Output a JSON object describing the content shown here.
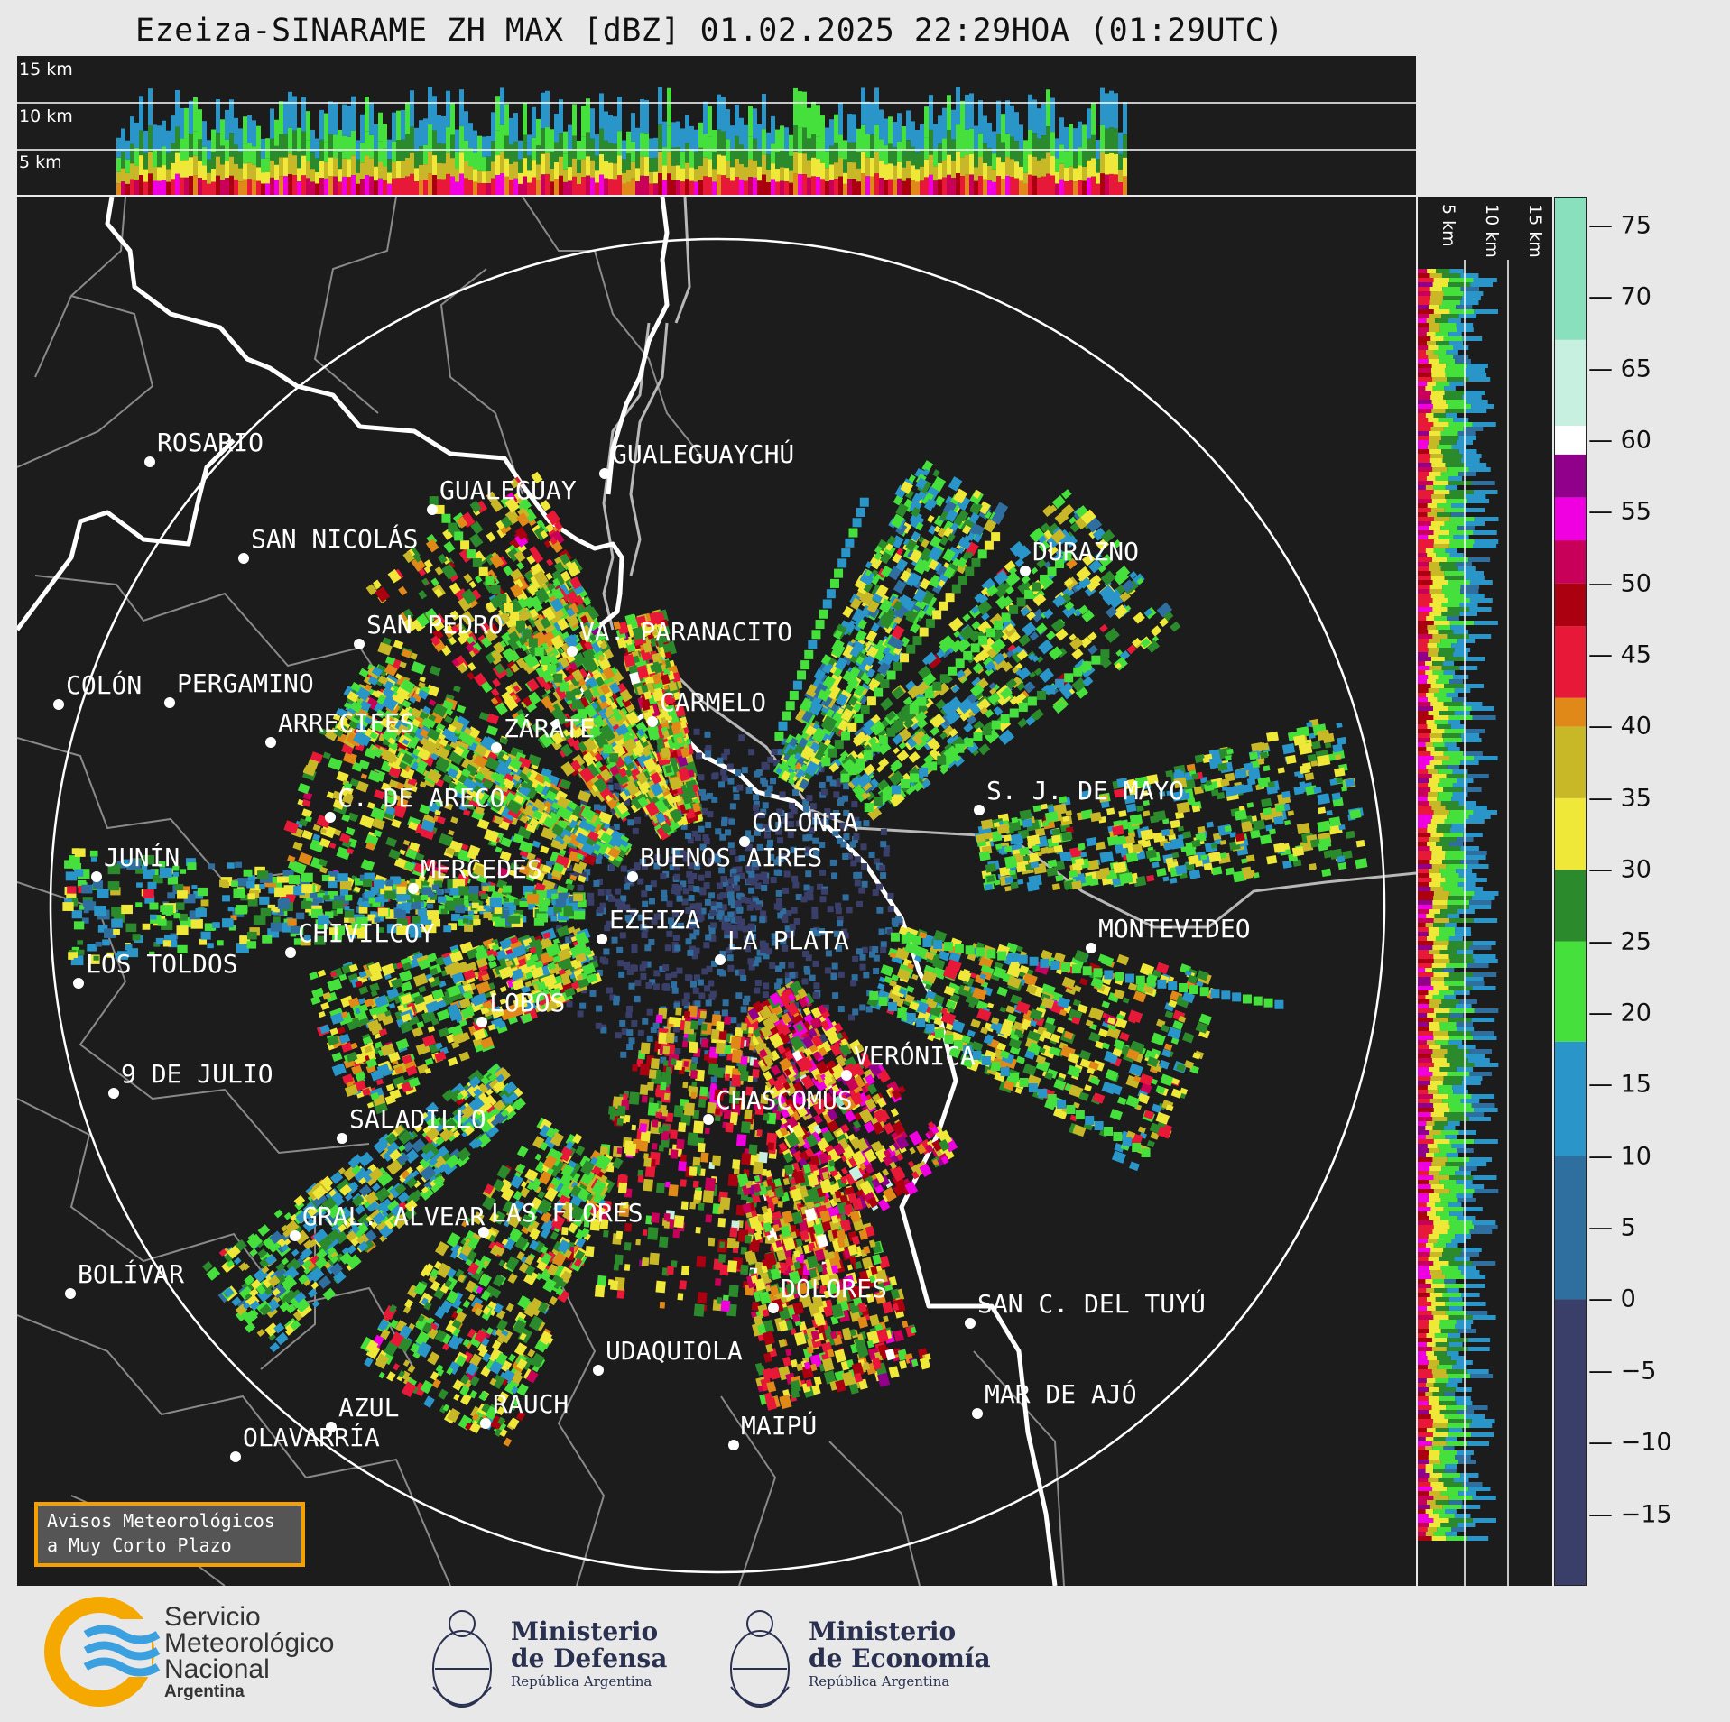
{
  "title": "Ezeiza-SINARAME ZH MAX [dBZ] 01.02.2025 22:29HOA (01:29UTC)",
  "height_levels": [
    "15 km",
    "10 km",
    "5 km"
  ],
  "colorbar": {
    "ticks": [
      "75",
      "70",
      "65",
      "60",
      "55",
      "50",
      "45",
      "40",
      "35",
      "30",
      "25",
      "20",
      "15",
      "10",
      "5",
      "0",
      "−5",
      "−10",
      "−15"
    ],
    "range": [
      -20,
      77
    ],
    "stops": [
      {
        "min": -20,
        "color": "#3a3f6a"
      },
      {
        "min": 0,
        "color": "#2f6fa0"
      },
      {
        "min": 10,
        "color": "#2a95c8"
      },
      {
        "min": 18,
        "color": "#45e03c"
      },
      {
        "min": 25,
        "color": "#2b8a2b"
      },
      {
        "min": 30,
        "color": "#f0e838"
      },
      {
        "min": 35,
        "color": "#c8b828"
      },
      {
        "min": 40,
        "color": "#e08818"
      },
      {
        "min": 42,
        "color": "#e81838"
      },
      {
        "min": 47,
        "color": "#aa0010"
      },
      {
        "min": 50,
        "color": "#c8005a"
      },
      {
        "min": 53,
        "color": "#f000e0"
      },
      {
        "min": 56,
        "color": "#90008a"
      },
      {
        "min": 59,
        "color": "#ffffff"
      },
      {
        "min": 61,
        "color": "#c8f0e0"
      },
      {
        "min": 67,
        "color": "#88e0bc"
      }
    ]
  },
  "cities": [
    {
      "name": "ROSARIO"
    },
    {
      "name": "GUALEGUAYCHÚ"
    },
    {
      "name": "GUALEGUAY"
    },
    {
      "name": "SAN NICOLÁS"
    },
    {
      "name": "DURAZNO"
    },
    {
      "name": "SAN PEDRO"
    },
    {
      "name": "VA. PARANACITO"
    },
    {
      "name": "COLÓN"
    },
    {
      "name": "PERGAMINO"
    },
    {
      "name": "CARMELO"
    },
    {
      "name": "ARRECIFES"
    },
    {
      "name": "ZÁRATE"
    },
    {
      "name": "S. J. DE MAYO"
    },
    {
      "name": "C. DE ARECO"
    },
    {
      "name": "COLONIA"
    },
    {
      "name": "JUNÍN"
    },
    {
      "name": "BUENOS AIRES"
    },
    {
      "name": "MERCEDES"
    },
    {
      "name": "MONTEVIDEO"
    },
    {
      "name": "EZEIZA"
    },
    {
      "name": "CHIVILCOY"
    },
    {
      "name": "LA PLATA"
    },
    {
      "name": "LOS TOLDOS"
    },
    {
      "name": "LOBOS"
    },
    {
      "name": "VERÓNICA"
    },
    {
      "name": "9 DE JULIO"
    },
    {
      "name": "CHASCOMÚS"
    },
    {
      "name": "SALADILLO"
    },
    {
      "name": "GRAL. ALVEAR"
    },
    {
      "name": "LAS FLORES"
    },
    {
      "name": "BOLÍVAR"
    },
    {
      "name": "DOLORES"
    },
    {
      "name": "SAN C. DEL TUYÚ"
    },
    {
      "name": "UDAQUIOLA"
    },
    {
      "name": "MAR DE AJÓ"
    },
    {
      "name": "AZUL"
    },
    {
      "name": "RAUCH"
    },
    {
      "name": "OLAVARRÍA"
    },
    {
      "name": "MAIPÚ"
    }
  ],
  "aviso": {
    "line1": "Avisos Meteorológicos",
    "line2": "a Muy Corto Plazo"
  },
  "footer": {
    "smn": {
      "line1": "Servicio",
      "line2": "Meteorológico",
      "line3": "Nacional",
      "line4": "Argentina"
    },
    "defensa": {
      "line1": "Ministerio",
      "line2": "de Defensa",
      "line3": "República Argentina"
    },
    "economia": {
      "line1": "Ministerio",
      "line2": "de Economía",
      "line3": "República Argentina"
    }
  }
}
